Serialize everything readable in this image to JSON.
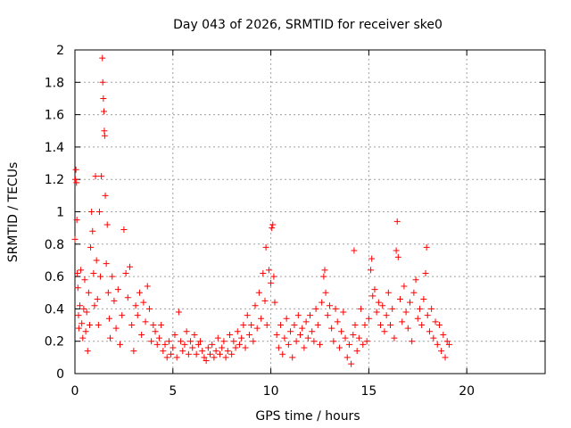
{
  "chart_data": {
    "type": "scatter",
    "title": "Day 043 of 2026, SRMTID for receiver ske0",
    "xlabel": "GPS time / hours",
    "ylabel": "SRMTID / TECUs",
    "xlim": [
      0,
      24
    ],
    "ylim": [
      0,
      2
    ],
    "xticks": [
      0,
      5,
      10,
      15,
      20
    ],
    "yticks": [
      0,
      0.2,
      0.4,
      0.6,
      0.8,
      1,
      1.2,
      1.4,
      1.6,
      1.8,
      2
    ],
    "xtick_labels": [
      "0",
      "5",
      "10",
      "15",
      "20"
    ],
    "ytick_labels": [
      "0",
      "0.2",
      "0.4",
      "0.6",
      "0.8",
      "1",
      "1.2",
      "1.4",
      "1.6",
      "1.8",
      "2"
    ],
    "grid": true,
    "marker": "+",
    "marker_color": "#ff0000",
    "series": [
      {
        "name": "SRMTID",
        "points": [
          [
            0.0,
            0.83
          ],
          [
            0.02,
            1.2
          ],
          [
            0.05,
            1.26
          ],
          [
            0.08,
            1.18
          ],
          [
            0.1,
            0.95
          ],
          [
            0.12,
            0.62
          ],
          [
            0.15,
            0.53
          ],
          [
            0.18,
            0.36
          ],
          [
            0.2,
            0.28
          ],
          [
            0.25,
            0.42
          ],
          [
            0.3,
            0.64
          ],
          [
            0.35,
            0.31
          ],
          [
            0.4,
            0.22
          ],
          [
            0.45,
            0.4
          ],
          [
            0.5,
            0.58
          ],
          [
            0.55,
            0.26
          ],
          [
            0.6,
            0.38
          ],
          [
            0.65,
            0.14
          ],
          [
            0.7,
            0.5
          ],
          [
            0.75,
            0.3
          ],
          [
            0.8,
            0.78
          ],
          [
            0.85,
            1.0
          ],
          [
            0.9,
            0.88
          ],
          [
            0.95,
            0.62
          ],
          [
            1.0,
            0.42
          ],
          [
            1.05,
            1.22
          ],
          [
            1.1,
            0.7
          ],
          [
            1.15,
            0.46
          ],
          [
            1.2,
            0.3
          ],
          [
            1.25,
            1.0
          ],
          [
            1.3,
            0.6
          ],
          [
            1.35,
            1.22
          ],
          [
            1.4,
            1.95
          ],
          [
            1.42,
            1.8
          ],
          [
            1.45,
            1.7
          ],
          [
            1.48,
            1.62
          ],
          [
            1.5,
            1.5
          ],
          [
            1.52,
            1.47
          ],
          [
            1.55,
            1.1
          ],
          [
            1.6,
            0.68
          ],
          [
            1.65,
            0.92
          ],
          [
            1.7,
            0.5
          ],
          [
            1.75,
            0.34
          ],
          [
            1.8,
            0.22
          ],
          [
            1.9,
            0.6
          ],
          [
            2.0,
            0.45
          ],
          [
            2.1,
            0.28
          ],
          [
            2.2,
            0.52
          ],
          [
            2.3,
            0.18
          ],
          [
            2.4,
            0.36
          ],
          [
            2.5,
            0.89
          ],
          [
            2.6,
            0.62
          ],
          [
            2.7,
            0.47
          ],
          [
            2.8,
            0.66
          ],
          [
            2.9,
            0.3
          ],
          [
            3.0,
            0.14
          ],
          [
            3.1,
            0.42
          ],
          [
            3.2,
            0.36
          ],
          [
            3.3,
            0.5
          ],
          [
            3.4,
            0.24
          ],
          [
            3.5,
            0.44
          ],
          [
            3.6,
            0.32
          ],
          [
            3.7,
            0.54
          ],
          [
            3.8,
            0.4
          ],
          [
            3.9,
            0.2
          ],
          [
            4.0,
            0.3
          ],
          [
            4.1,
            0.26
          ],
          [
            4.2,
            0.18
          ],
          [
            4.3,
            0.22
          ],
          [
            4.4,
            0.3
          ],
          [
            4.5,
            0.14
          ],
          [
            4.6,
            0.18
          ],
          [
            4.7,
            0.1
          ],
          [
            4.8,
            0.2
          ],
          [
            4.9,
            0.12
          ],
          [
            5.0,
            0.16
          ],
          [
            5.1,
            0.24
          ],
          [
            5.2,
            0.1
          ],
          [
            5.3,
            0.38
          ],
          [
            5.4,
            0.2
          ],
          [
            5.5,
            0.14
          ],
          [
            5.6,
            0.18
          ],
          [
            5.7,
            0.26
          ],
          [
            5.8,
            0.12
          ],
          [
            5.9,
            0.2
          ],
          [
            6.0,
            0.16
          ],
          [
            6.1,
            0.24
          ],
          [
            6.2,
            0.12
          ],
          [
            6.3,
            0.18
          ],
          [
            6.4,
            0.2
          ],
          [
            6.5,
            0.14
          ],
          [
            6.6,
            0.1
          ],
          [
            6.7,
            0.08
          ],
          [
            6.8,
            0.16
          ],
          [
            6.9,
            0.12
          ],
          [
            7.0,
            0.18
          ],
          [
            7.1,
            0.1
          ],
          [
            7.2,
            0.14
          ],
          [
            7.3,
            0.22
          ],
          [
            7.4,
            0.12
          ],
          [
            7.5,
            0.16
          ],
          [
            7.6,
            0.2
          ],
          [
            7.7,
            0.1
          ],
          [
            7.8,
            0.14
          ],
          [
            7.9,
            0.24
          ],
          [
            8.0,
            0.12
          ],
          [
            8.1,
            0.2
          ],
          [
            8.2,
            0.16
          ],
          [
            8.3,
            0.26
          ],
          [
            8.4,
            0.18
          ],
          [
            8.5,
            0.22
          ],
          [
            8.6,
            0.3
          ],
          [
            8.7,
            0.16
          ],
          [
            8.8,
            0.36
          ],
          [
            8.9,
            0.24
          ],
          [
            9.0,
            0.3
          ],
          [
            9.1,
            0.2
          ],
          [
            9.2,
            0.42
          ],
          [
            9.3,
            0.28
          ],
          [
            9.4,
            0.5
          ],
          [
            9.5,
            0.34
          ],
          [
            9.6,
            0.62
          ],
          [
            9.7,
            0.45
          ],
          [
            9.75,
            0.78
          ],
          [
            9.8,
            0.3
          ],
          [
            9.9,
            0.64
          ],
          [
            10.0,
            0.56
          ],
          [
            10.05,
            0.9
          ],
          [
            10.1,
            0.92
          ],
          [
            10.15,
            0.6
          ],
          [
            10.2,
            0.44
          ],
          [
            10.3,
            0.24
          ],
          [
            10.4,
            0.16
          ],
          [
            10.5,
            0.3
          ],
          [
            10.6,
            0.12
          ],
          [
            10.7,
            0.22
          ],
          [
            10.8,
            0.34
          ],
          [
            10.9,
            0.18
          ],
          [
            11.0,
            0.26
          ],
          [
            11.1,
            0.1
          ],
          [
            11.2,
            0.3
          ],
          [
            11.3,
            0.2
          ],
          [
            11.4,
            0.36
          ],
          [
            11.5,
            0.24
          ],
          [
            11.6,
            0.28
          ],
          [
            11.7,
            0.16
          ],
          [
            11.8,
            0.32
          ],
          [
            11.9,
            0.22
          ],
          [
            12.0,
            0.36
          ],
          [
            12.1,
            0.26
          ],
          [
            12.2,
            0.2
          ],
          [
            12.3,
            0.4
          ],
          [
            12.4,
            0.3
          ],
          [
            12.5,
            0.18
          ],
          [
            12.6,
            0.44
          ],
          [
            12.7,
            0.6
          ],
          [
            12.75,
            0.64
          ],
          [
            12.8,
            0.5
          ],
          [
            12.9,
            0.36
          ],
          [
            13.0,
            0.42
          ],
          [
            13.1,
            0.28
          ],
          [
            13.2,
            0.2
          ],
          [
            13.3,
            0.4
          ],
          [
            13.4,
            0.32
          ],
          [
            13.5,
            0.16
          ],
          [
            13.6,
            0.26
          ],
          [
            13.7,
            0.38
          ],
          [
            13.8,
            0.22
          ],
          [
            13.9,
            0.1
          ],
          [
            14.0,
            0.18
          ],
          [
            14.1,
            0.06
          ],
          [
            14.2,
            0.24
          ],
          [
            14.25,
            0.76
          ],
          [
            14.3,
            0.3
          ],
          [
            14.4,
            0.14
          ],
          [
            14.5,
            0.22
          ],
          [
            14.6,
            0.4
          ],
          [
            14.7,
            0.18
          ],
          [
            14.8,
            0.3
          ],
          [
            14.9,
            0.2
          ],
          [
            15.0,
            0.34
          ],
          [
            15.1,
            0.64
          ],
          [
            15.15,
            0.71
          ],
          [
            15.2,
            0.48
          ],
          [
            15.3,
            0.52
          ],
          [
            15.4,
            0.38
          ],
          [
            15.5,
            0.44
          ],
          [
            15.6,
            0.3
          ],
          [
            15.7,
            0.42
          ],
          [
            15.8,
            0.26
          ],
          [
            15.9,
            0.36
          ],
          [
            16.0,
            0.5
          ],
          [
            16.1,
            0.3
          ],
          [
            16.2,
            0.4
          ],
          [
            16.3,
            0.22
          ],
          [
            16.4,
            0.76
          ],
          [
            16.45,
            0.94
          ],
          [
            16.5,
            0.72
          ],
          [
            16.6,
            0.46
          ],
          [
            16.7,
            0.32
          ],
          [
            16.8,
            0.54
          ],
          [
            16.9,
            0.38
          ],
          [
            17.0,
            0.28
          ],
          [
            17.1,
            0.44
          ],
          [
            17.2,
            0.2
          ],
          [
            17.3,
            0.5
          ],
          [
            17.4,
            0.58
          ],
          [
            17.5,
            0.34
          ],
          [
            17.6,
            0.4
          ],
          [
            17.7,
            0.3
          ],
          [
            17.8,
            0.46
          ],
          [
            17.9,
            0.62
          ],
          [
            17.95,
            0.78
          ],
          [
            18.0,
            0.36
          ],
          [
            18.1,
            0.26
          ],
          [
            18.2,
            0.4
          ],
          [
            18.3,
            0.22
          ],
          [
            18.4,
            0.32
          ],
          [
            18.5,
            0.18
          ],
          [
            18.6,
            0.3
          ],
          [
            18.7,
            0.14
          ],
          [
            18.8,
            0.24
          ],
          [
            18.9,
            0.1
          ],
          [
            19.0,
            0.2
          ],
          [
            19.1,
            0.18
          ]
        ]
      }
    ]
  }
}
